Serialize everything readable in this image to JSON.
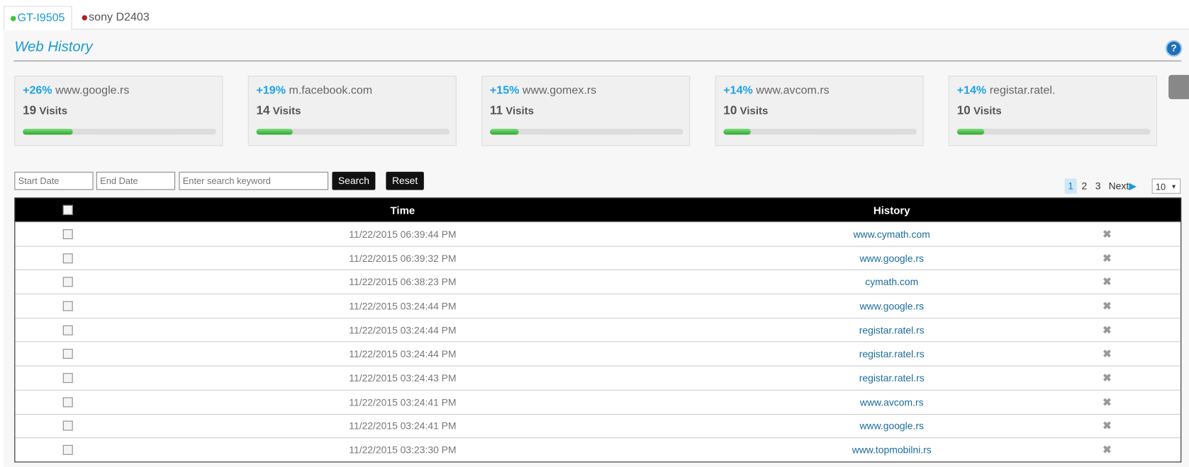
{
  "tabs": [
    "GT-I9505",
    "sony D2403"
  ],
  "header": {
    "title": "Web History"
  },
  "stats": [
    {
      "percent": {
        "value": 26,
        "label": "+26%"
      },
      "site": "www.google.rs",
      "visits": 19
    },
    {
      "percent": {
        "value": 19,
        "label": "+19%"
      },
      "site": "m.facebook.com",
      "visits": 14
    },
    {
      "percent": {
        "value": 15,
        "label": "+15%"
      },
      "site": "www.gomex.rs",
      "visits": 11
    },
    {
      "percent": {
        "value": 14,
        "label": "+14%"
      },
      "site": "www.avcom.rs",
      "visits": 10
    },
    {
      "percent": {
        "value": 14,
        "label": "+14%"
      },
      "site": "registar.ratel.",
      "visits": 10
    }
  ],
  "visits_label": "Visits",
  "filters": {
    "start_date": "Start Date",
    "end_date": "End Date",
    "keyword": "Enter search keyword",
    "search": "Search",
    "reset": "Reset"
  },
  "pagination": {
    "pages": [
      "1",
      "2",
      "3"
    ],
    "next": "Next",
    "page_size": "10"
  },
  "table": {
    "columns": [
      "Time",
      "History"
    ],
    "rows": [
      [
        "11/22/2015 06:39:44 PM",
        "www.cymath.com"
      ],
      [
        "11/22/2015 06:39:32 PM",
        "www.google.rs"
      ],
      [
        "11/22/2015 06:38:23 PM",
        "cymath.com"
      ],
      [
        "11/22/2015 03:24:44 PM",
        "www.google.rs"
      ],
      [
        "11/22/2015 03:24:44 PM",
        "registar.ratel.rs"
      ],
      [
        "11/22/2015 03:24:44 PM",
        "registar.ratel.rs"
      ],
      [
        "11/22/2015 03:24:43 PM",
        "registar.ratel.rs"
      ],
      [
        "11/22/2015 03:24:41 PM",
        "www.avcom.rs"
      ],
      [
        "11/22/2015 03:24:41 PM",
        "www.google.rs"
      ],
      [
        "11/22/2015 03:23:30 PM",
        "www.topmobilni.rs"
      ]
    ]
  }
}
